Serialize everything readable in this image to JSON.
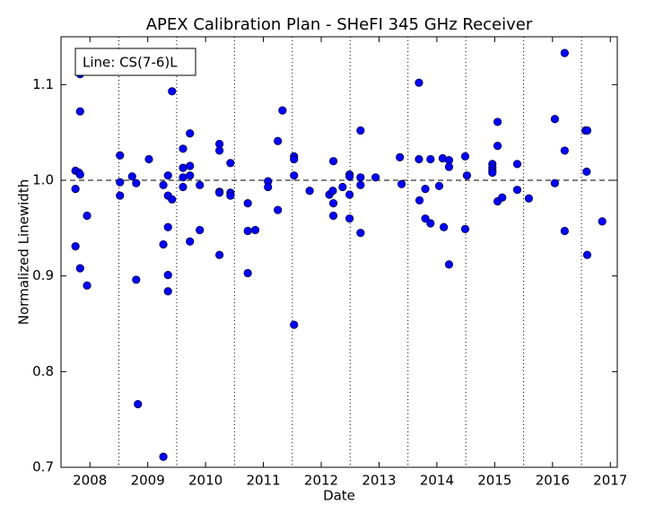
{
  "chart_data": {
    "type": "scatter",
    "title": "APEX Calibration Plan - SHeFI 345 GHz Receiver",
    "xlabel": "Date",
    "ylabel": "Normalized Linewidth",
    "annotation": "Line: CS(7-6)L",
    "color": "#0000ff",
    "xlim": [
      2007.5,
      2017.12
    ],
    "ylim": [
      0.7,
      1.15
    ],
    "xticks": [
      2008,
      2009,
      2010,
      2011,
      2012,
      2013,
      2014,
      2015,
      2016,
      2017
    ],
    "yticks": [
      0.7,
      0.8,
      0.9,
      {
        "value": 1,
        "label": "1.0"
      },
      1.1
    ],
    "xgrid": [
      2008.5,
      2009.5,
      2010.5,
      2011.5,
      2012.5,
      2013.5,
      2014.5,
      2015.5,
      2016.5
    ],
    "hline": 1.0,
    "x": [
      2007.75,
      2007.75,
      2007.75,
      2007.81,
      2007.83,
      2007.83,
      2007.83,
      2007.83,
      2007.95,
      2007.95,
      2008.52,
      2008.52,
      2008.52,
      2008.73,
      2008.8,
      2008.8,
      2008.83,
      2009.02,
      2009.27,
      2009.27,
      2009.27,
      2009.35,
      2009.35,
      2009.35,
      2009.35,
      2009.35,
      2009.42,
      2009.42,
      2009.61,
      2009.61,
      2009.61,
      2009.61,
      2009.73,
      2009.73,
      2009.73,
      2009.73,
      2009.9,
      2009.9,
      2010.24,
      2010.24,
      2010.24,
      2010.24,
      2010.24,
      2010.43,
      2010.43,
      2010.43,
      2010.73,
      2010.73,
      2010.73,
      2010.86,
      2011.08,
      2011.08,
      2011.25,
      2011.25,
      2011.33,
      2011.53,
      2011.53,
      2011.53,
      2011.53,
      2011.8,
      2012.14,
      2012.2,
      2012.21,
      2012.21,
      2012.21,
      2012.37,
      2012.49,
      2012.49,
      2012.49,
      2012.49,
      2012.68,
      2012.68,
      2012.68,
      2012.68,
      2012.94,
      2013.36,
      2013.39,
      2013.69,
      2013.69,
      2013.7,
      2013.8,
      2013.8,
      2013.89,
      2013.89,
      2014.04,
      2014.1,
      2014.12,
      2014.21,
      2014.21,
      2014.21,
      2014.49,
      2014.49,
      2014.52,
      2014.96,
      2014.96,
      2014.96,
      2014.96,
      2015.05,
      2015.05,
      2015.05,
      2015.13,
      2015.39,
      2015.39,
      2015.59,
      2016.04,
      2016.04,
      2016.21,
      2016.21,
      2016.21,
      2016.57,
      2016.6,
      2016.59,
      2016.6,
      2016.86
    ],
    "y": [
      1.01,
      0.991,
      0.931,
      1.008,
      1.006,
      1.111,
      1.072,
      0.908,
      0.963,
      0.89,
      1.026,
      0.998,
      0.984,
      1.004,
      0.997,
      0.896,
      0.766,
      1.022,
      0.995,
      0.933,
      0.711,
      1.005,
      0.984,
      0.951,
      0.901,
      0.884,
      0.98,
      1.093,
      1.033,
      1.013,
      1.003,
      0.993,
      1.049,
      1.015,
      1.005,
      0.936,
      0.995,
      0.948,
      1.038,
      1.031,
      0.988,
      0.987,
      0.922,
      1.018,
      0.987,
      0.984,
      0.976,
      0.947,
      0.903,
      0.948,
      0.999,
      0.993,
      1.041,
      0.969,
      1.073,
      1.025,
      1.022,
      1.005,
      0.849,
      0.989,
      0.985,
      0.989,
      1.02,
      0.976,
      0.963,
      0.993,
      1.006,
      1.004,
      0.985,
      0.96,
      1.052,
      1.003,
      0.995,
      0.945,
      1.003,
      1.024,
      0.996,
      1.102,
      1.022,
      0.979,
      0.991,
      0.96,
      0.955,
      1.022,
      0.994,
      1.023,
      0.951,
      1.021,
      1.014,
      0.912,
      1.025,
      0.949,
      1.005,
      1.017,
      1.013,
      1.01,
      1.008,
      1.061,
      1.036,
      0.978,
      0.982,
      1.017,
      0.99,
      0.981,
      1.064,
      0.997,
      1.133,
      1.031,
      0.947,
      1.052,
      1.052,
      1.009,
      0.922,
      0.957
    ]
  }
}
